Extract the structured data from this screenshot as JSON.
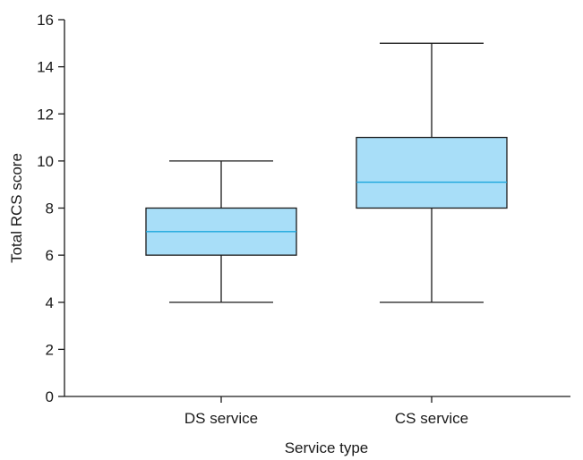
{
  "chart_data": {
    "type": "box",
    "xlabel": "Service type",
    "ylabel": "Total RCS score",
    "ylim": [
      0,
      16
    ],
    "yticks": [
      0,
      2,
      4,
      6,
      8,
      10,
      12,
      14,
      16
    ],
    "ytick_labels": [
      "0",
      "2",
      "4",
      "6",
      "8",
      "10",
      "12",
      "14",
      "16"
    ],
    "categories": [
      "DS service",
      "CS service"
    ],
    "boxes": [
      {
        "category": "DS service",
        "min": 4,
        "q1": 6,
        "median": 7,
        "q3": 8,
        "max": 10
      },
      {
        "category": "CS service",
        "min": 4,
        "q1": 8,
        "median": 9.1,
        "q3": 11,
        "max": 15
      }
    ],
    "grid": false,
    "box_fill": "#a8def8",
    "median_color": "#1ba7dc",
    "line_color": "#1a1a1a"
  }
}
